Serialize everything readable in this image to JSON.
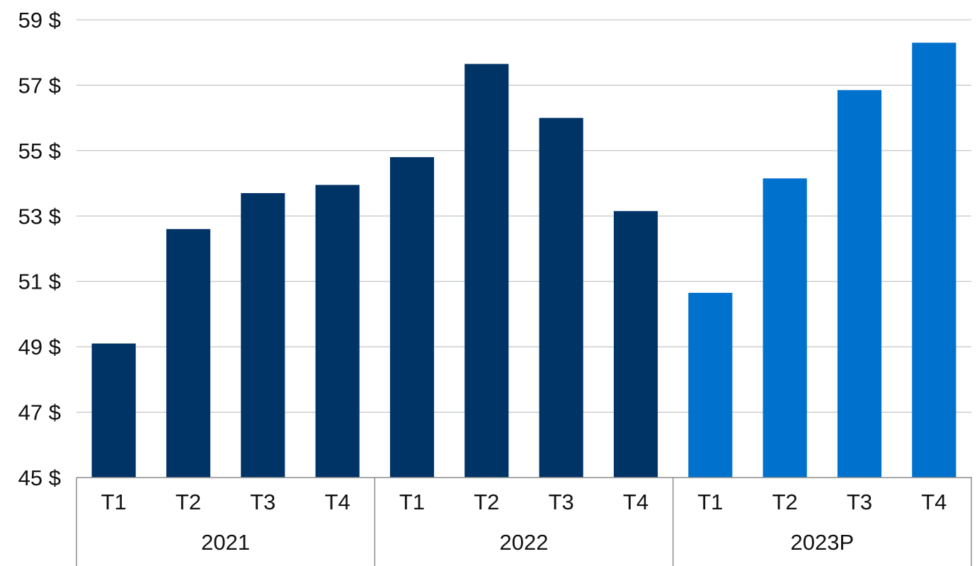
{
  "chart_data": {
    "type": "bar",
    "title": "",
    "xlabel": "",
    "ylabel": "",
    "ylim": [
      45,
      59
    ],
    "y_ticks": [
      45,
      47,
      49,
      51,
      53,
      55,
      57,
      59
    ],
    "y_tick_format": "{v} $",
    "grid": true,
    "legend": "none",
    "categories": [
      "T1",
      "T2",
      "T3",
      "T4",
      "T1",
      "T2",
      "T3",
      "T4",
      "T1",
      "T2",
      "T3",
      "T4"
    ],
    "groups": [
      {
        "label": "2021",
        "size": 4
      },
      {
        "label": "2022",
        "size": 4
      },
      {
        "label": "2023P",
        "size": 4
      }
    ],
    "values": [
      49.1,
      52.6,
      53.7,
      53.95,
      54.8,
      57.65,
      56.0,
      53.15,
      50.65,
      54.15,
      56.85,
      58.3
    ],
    "bar_colors": [
      "#003366",
      "#003366",
      "#003366",
      "#003366",
      "#003366",
      "#003366",
      "#003366",
      "#003366",
      "#0072CE",
      "#0072CE",
      "#0072CE",
      "#0072CE"
    ],
    "grid_color": "#b8b8b8",
    "axis_color": "#8c8c8c"
  }
}
